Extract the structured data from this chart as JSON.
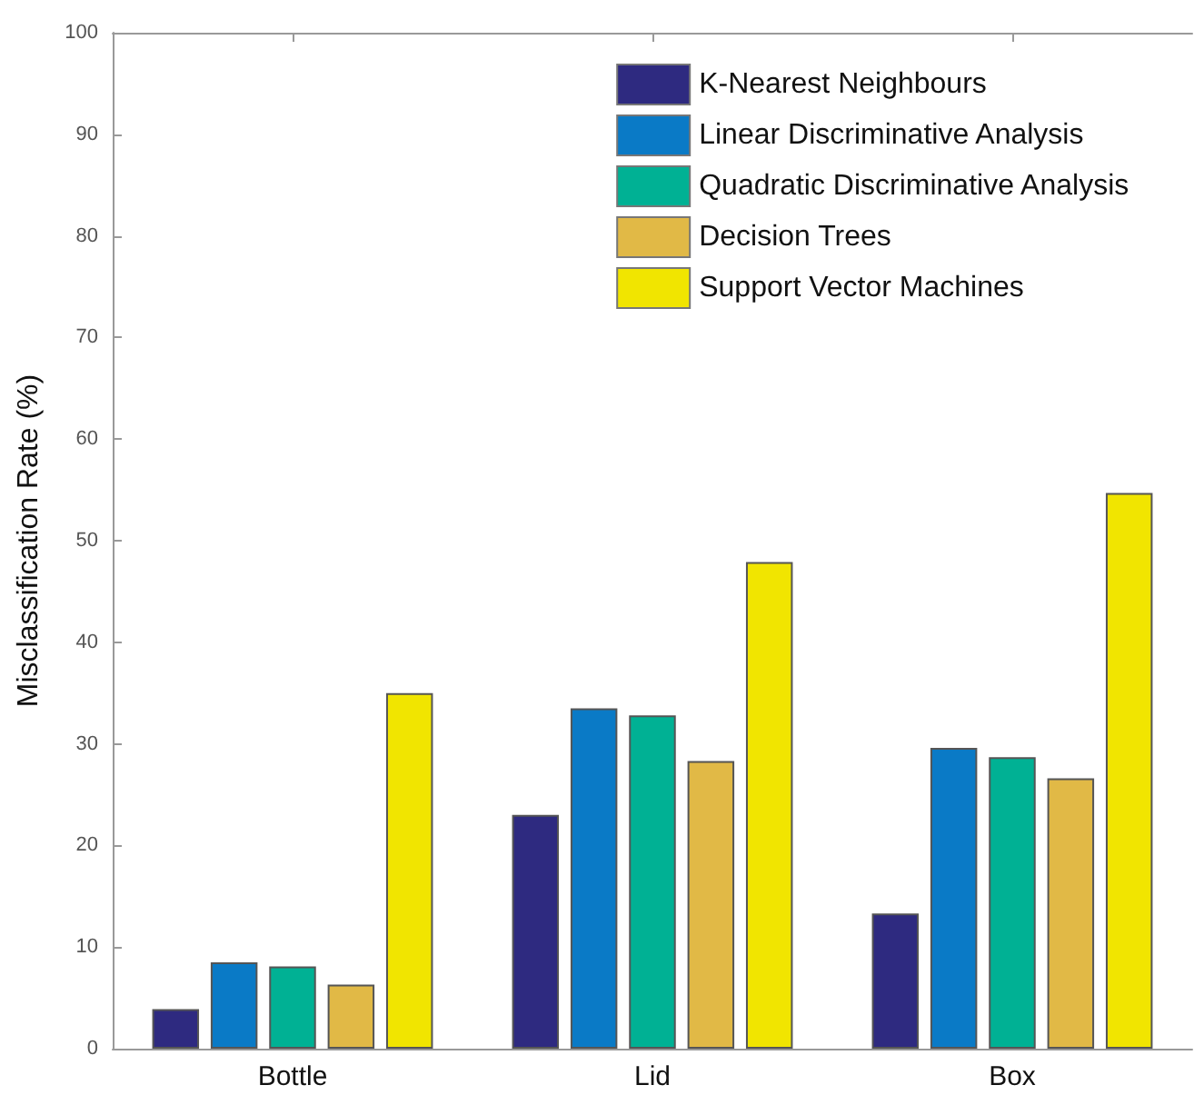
{
  "chart_data": {
    "type": "bar",
    "ylabel": "Misclassification Rate (%)",
    "categories": [
      "Bottle",
      "Lid",
      "Box"
    ],
    "series": [
      {
        "name": "K-Nearest Neighbours",
        "color": "#2e2a80",
        "values": [
          3.9,
          23,
          13.3
        ]
      },
      {
        "name": "Linear Discriminative Analysis",
        "color": "#0a7ac6",
        "values": [
          8.5,
          33.5,
          29.6
        ]
      },
      {
        "name": "Quadratic Discriminative Analysis",
        "color": "#00b194",
        "values": [
          8.1,
          32.8,
          28.7
        ]
      },
      {
        "name": "Decision Trees",
        "color": "#e1b946",
        "values": [
          6.3,
          28.3,
          26.6
        ]
      },
      {
        "name": "Support Vector Machines",
        "color": "#f1e500",
        "values": [
          35,
          47.9,
          54.7
        ]
      }
    ],
    "ylim": [
      0,
      100
    ],
    "yticks": [
      0,
      10,
      20,
      30,
      40,
      50,
      60,
      70,
      80,
      90,
      100
    ],
    "grid": false,
    "legend": "top right"
  }
}
